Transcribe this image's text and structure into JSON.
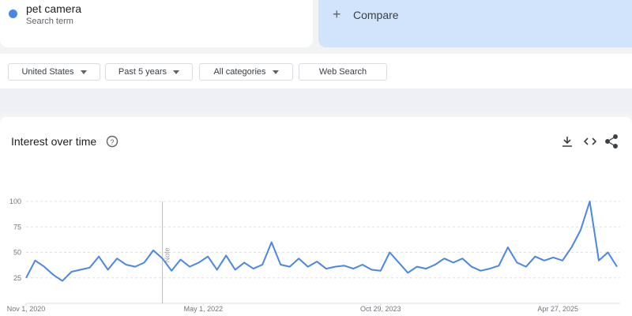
{
  "search_term_label": "Search term",
  "compare": "Compare",
  "filters": [
    "United States",
    "Past 5 years",
    "All categories",
    "Web Search"
  ],
  "chart_data": {
    "type": "line",
    "title": "Interest over time",
    "x": [
      "2020-11-01",
      "2020-11-29",
      "2020-12-27",
      "2021-01-24",
      "2021-02-21",
      "2021-03-21",
      "2021-04-18",
      "2021-05-16",
      "2021-06-13",
      "2021-07-11",
      "2021-08-08",
      "2021-09-05",
      "2021-10-03",
      "2021-10-31",
      "2021-11-28",
      "2021-12-26",
      "2022-01-23",
      "2022-02-20",
      "2022-03-20",
      "2022-04-17",
      "2022-05-15",
      "2022-06-12",
      "2022-07-10",
      "2022-08-07",
      "2022-09-04",
      "2022-10-02",
      "2022-10-30",
      "2022-11-27",
      "2022-12-25",
      "2023-01-22",
      "2023-02-19",
      "2023-03-19",
      "2023-04-16",
      "2023-05-14",
      "2023-06-11",
      "2023-07-09",
      "2023-08-06",
      "2023-09-03",
      "2023-10-01",
      "2023-10-29",
      "2023-11-26",
      "2023-12-24",
      "2024-01-21",
      "2024-02-18",
      "2024-03-17",
      "2024-04-14",
      "2024-05-12",
      "2024-06-09",
      "2024-07-07",
      "2024-08-04",
      "2024-09-01",
      "2024-09-29",
      "2024-10-27",
      "2024-11-24",
      "2024-12-22",
      "2025-01-19",
      "2025-02-16",
      "2025-03-16",
      "2025-04-13",
      "2025-05-11",
      "2025-06-08",
      "2025-07-06",
      "2025-08-03",
      "2025-08-31",
      "2025-09-28",
      "2025-10-26"
    ],
    "series": [
      {
        "name": "pet camera",
        "color": "#4a86e8",
        "values": [
          25,
          42,
          36,
          28,
          22,
          31,
          33,
          35,
          46,
          33,
          44,
          38,
          36,
          40,
          52,
          44,
          32,
          43,
          36,
          40,
          46,
          33,
          47,
          33,
          40,
          34,
          38,
          60,
          38,
          36,
          44,
          36,
          41,
          34,
          36,
          37,
          34,
          38,
          33,
          32,
          50,
          40,
          30,
          36,
          34,
          38,
          44,
          40,
          44,
          36,
          32,
          34,
          37,
          55,
          40,
          36,
          46,
          42,
          45,
          42,
          55,
          72,
          100,
          42,
          50,
          36
        ]
      }
    ],
    "xlim": [
      "2020-11-01",
      "2025-10-26"
    ],
    "xticks": [
      {
        "value": "2020-11-01",
        "label": "Nov 1, 2020"
      },
      {
        "value": "2022-05-01",
        "label": "May 1, 2022"
      },
      {
        "value": "2023-10-29",
        "label": "Oct 29, 2023"
      },
      {
        "value": "2025-04-27",
        "label": "Apr 27, 2025"
      }
    ],
    "ylim": [
      0,
      100
    ],
    "yticks": [
      25,
      50,
      75,
      100
    ],
    "grid": true,
    "note": {
      "x": "2021-12-26",
      "label": "Note"
    }
  }
}
